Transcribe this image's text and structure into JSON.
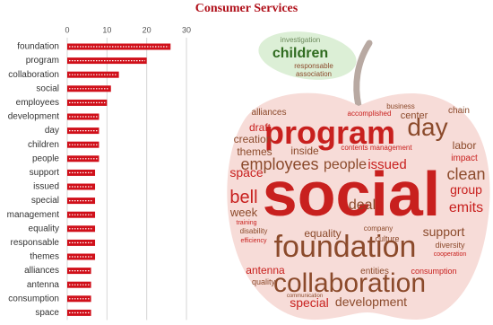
{
  "chart_data": {
    "type": "bar",
    "orientation": "horizontal",
    "title": "Consumer Services",
    "categories": [
      "foundation",
      "program",
      "collaboration",
      "social",
      "employees",
      "development",
      "day",
      "children",
      "people",
      "support",
      "issued",
      "special",
      "management",
      "equality",
      "responsable",
      "themes",
      "alliances",
      "antenna",
      "consumption",
      "space"
    ],
    "values": [
      26,
      20,
      13,
      11,
      10,
      8,
      8,
      8,
      8,
      7,
      7,
      7,
      7,
      7,
      7,
      7,
      6,
      6,
      6,
      6
    ],
    "color": "#d0101a",
    "xlim": [
      0,
      30
    ],
    "xticks": [
      0,
      10,
      20,
      30
    ],
    "grid": true
  },
  "word_cloud": {
    "leaf_words": [
      "investigation",
      "children",
      "responsable",
      "association"
    ],
    "words": [
      "alliances",
      "accomplished",
      "business",
      "center",
      "program",
      "day",
      "chain",
      "draft",
      "creation",
      "themes",
      "inside",
      "contents management",
      "labor",
      "impact",
      "employees",
      "people",
      "issued",
      "clean",
      "space",
      "group",
      "social",
      "bell",
      "deal",
      "emits",
      "week",
      "training",
      "company",
      "disability",
      "efficiency",
      "equality",
      "culture",
      "support",
      "diversity",
      "cooperation",
      "foundation",
      "antenna",
      "quality",
      "entities",
      "consumption",
      "communication",
      "collaboration",
      "special",
      "development"
    ]
  }
}
